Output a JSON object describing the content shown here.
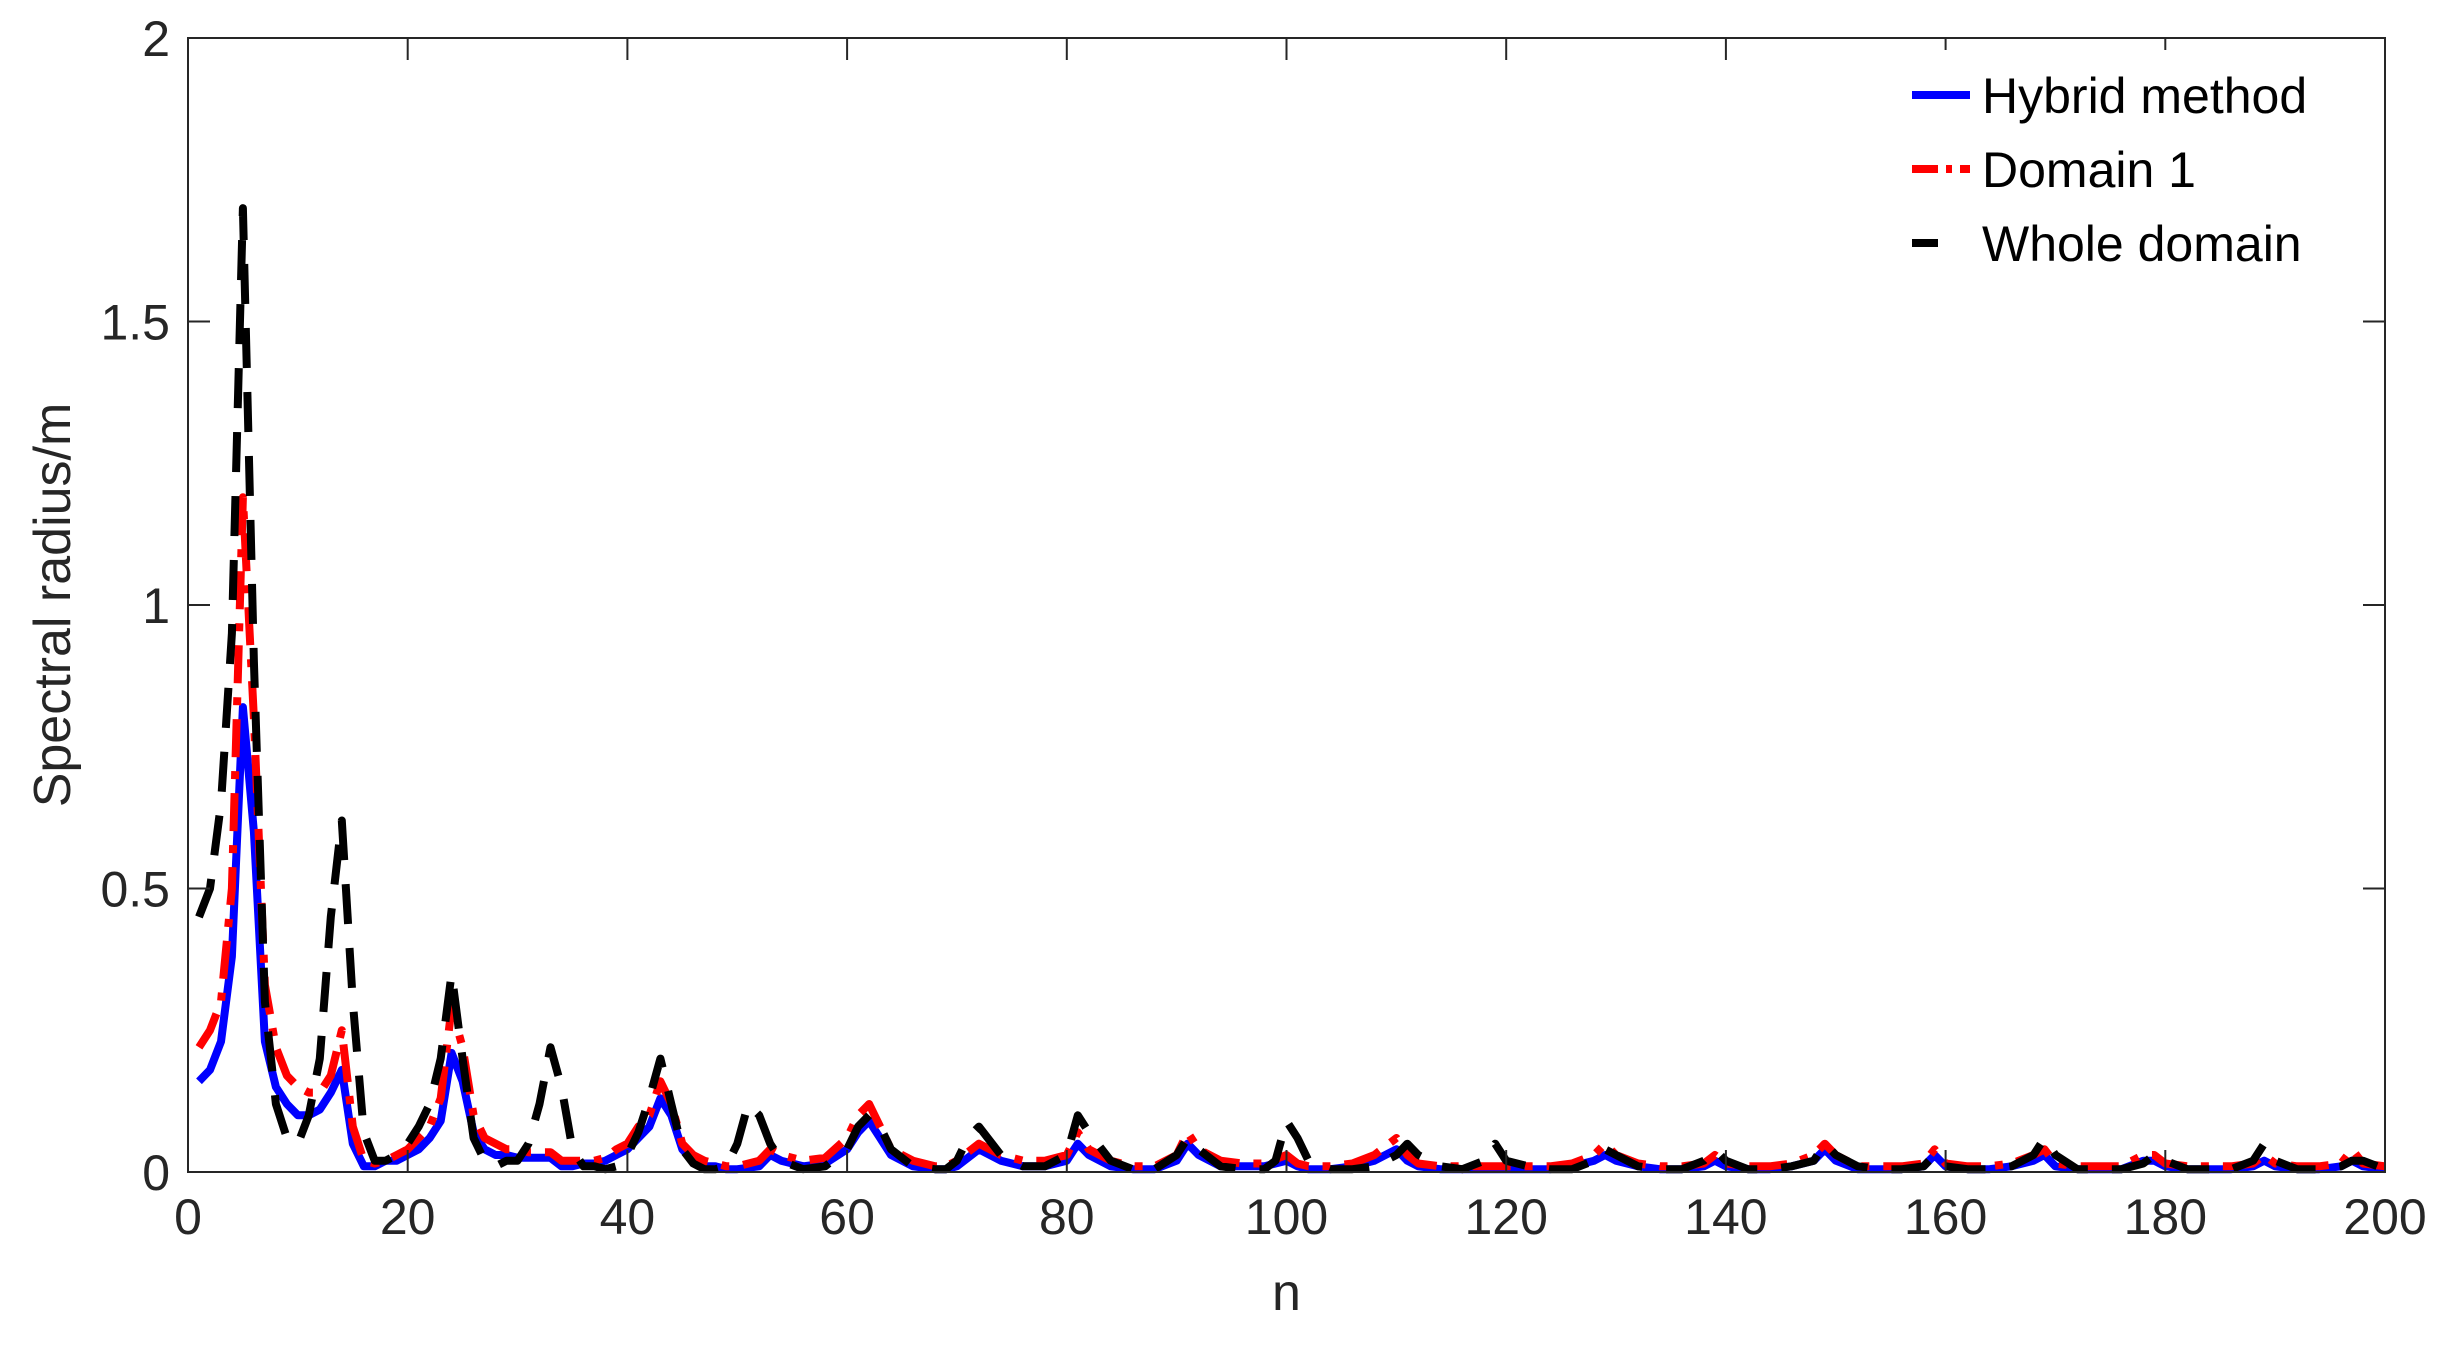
{
  "chart_data": {
    "type": "line",
    "xlabel": "n",
    "ylabel": "Spectral radius/m",
    "xlim": [
      0,
      200
    ],
    "ylim": [
      0,
      2
    ],
    "xticks": [
      0,
      20,
      40,
      60,
      80,
      100,
      120,
      140,
      160,
      180,
      200
    ],
    "yticks": [
      0,
      0.5,
      1,
      1.5,
      2
    ],
    "ytick_labels": [
      "0",
      "0.5",
      "1",
      "1.5",
      "2"
    ],
    "grid": false,
    "legend_position": "top-right",
    "series": [
      {
        "name": "Hybrid method",
        "color": "#0000ff",
        "style": "solid",
        "x": [
          1,
          2,
          3,
          4,
          5,
          6,
          7,
          8,
          9,
          10,
          11,
          12,
          13,
          14,
          15,
          16,
          17,
          18,
          19,
          20,
          21,
          22,
          23,
          24,
          25,
          26,
          27,
          28,
          29,
          30,
          31,
          32,
          33,
          34,
          35,
          36,
          37,
          38,
          39,
          40,
          41,
          42,
          43,
          44,
          45,
          46,
          47,
          48,
          49,
          50,
          52,
          53,
          54,
          56,
          58,
          60,
          61,
          62,
          63,
          64,
          66,
          68,
          69,
          70,
          72,
          74,
          76,
          78,
          80,
          81,
          82,
          84,
          86,
          88,
          90,
          91,
          92,
          94,
          96,
          98,
          100,
          101,
          102,
          104,
          106,
          108,
          110,
          111,
          112,
          114,
          116,
          118,
          120,
          122,
          124,
          126,
          128,
          129,
          130,
          132,
          134,
          136,
          138,
          139,
          140,
          142,
          144,
          146,
          148,
          149,
          150,
          152,
          154,
          156,
          158,
          159,
          160,
          162,
          164,
          166,
          168,
          169,
          170,
          172,
          174,
          176,
          178,
          179,
          180,
          182,
          184,
          186,
          188,
          189,
          190,
          192,
          194,
          196,
          197,
          198,
          200
        ],
        "y": [
          0.16,
          0.18,
          0.23,
          0.38,
          0.82,
          0.6,
          0.23,
          0.15,
          0.12,
          0.1,
          0.1,
          0.11,
          0.14,
          0.18,
          0.05,
          0.01,
          0.01,
          0.02,
          0.02,
          0.03,
          0.04,
          0.06,
          0.09,
          0.21,
          0.16,
          0.07,
          0.04,
          0.03,
          0.03,
          0.025,
          0.025,
          0.025,
          0.025,
          0.01,
          0.01,
          0.015,
          0.015,
          0.02,
          0.03,
          0.04,
          0.06,
          0.08,
          0.13,
          0.1,
          0.04,
          0.02,
          0.01,
          0.01,
          0.005,
          0.005,
          0.01,
          0.03,
          0.02,
          0.01,
          0.015,
          0.04,
          0.07,
          0.09,
          0.06,
          0.03,
          0.01,
          0.005,
          0.005,
          0.01,
          0.04,
          0.02,
          0.01,
          0.01,
          0.02,
          0.05,
          0.03,
          0.01,
          0.005,
          0.005,
          0.02,
          0.05,
          0.03,
          0.01,
          0.01,
          0.01,
          0.02,
          0.01,
          0.005,
          0.005,
          0.01,
          0.02,
          0.04,
          0.02,
          0.01,
          0.005,
          0.005,
          0.005,
          0.005,
          0.005,
          0.005,
          0.01,
          0.02,
          0.03,
          0.02,
          0.01,
          0.005,
          0.005,
          0.01,
          0.02,
          0.01,
          0.005,
          0.005,
          0.01,
          0.02,
          0.04,
          0.02,
          0.005,
          0.005,
          0.005,
          0.01,
          0.03,
          0.01,
          0.005,
          0.005,
          0.01,
          0.02,
          0.03,
          0.01,
          0.005,
          0.005,
          0.005,
          0.02,
          0.02,
          0.01,
          0.005,
          0.005,
          0.005,
          0.01,
          0.02,
          0.01,
          0.005,
          0.005,
          0.01,
          0.02,
          0.01,
          0.005
        ]
      },
      {
        "name": "Domain 1",
        "color": "#ff0000",
        "style": "dashdot",
        "x": [
          1,
          2,
          3,
          4,
          5,
          6,
          7,
          8,
          9,
          10,
          11,
          12,
          13,
          14,
          15,
          16,
          17,
          18,
          19,
          20,
          21,
          22,
          23,
          24,
          25,
          26,
          27,
          28,
          29,
          30,
          31,
          32,
          33,
          34,
          35,
          36,
          37,
          38,
          39,
          40,
          41,
          42,
          43,
          44,
          45,
          46,
          47,
          48,
          49,
          50,
          52,
          53,
          54,
          56,
          58,
          60,
          61,
          62,
          63,
          64,
          66,
          68,
          69,
          70,
          72,
          74,
          76,
          78,
          80,
          81,
          82,
          84,
          86,
          88,
          90,
          91,
          92,
          94,
          96,
          98,
          100,
          101,
          102,
          104,
          106,
          108,
          110,
          111,
          112,
          114,
          116,
          118,
          120,
          122,
          124,
          126,
          128,
          129,
          130,
          132,
          134,
          136,
          138,
          139,
          140,
          142,
          144,
          146,
          148,
          149,
          150,
          152,
          154,
          156,
          158,
          159,
          160,
          162,
          164,
          166,
          168,
          169,
          170,
          172,
          174,
          176,
          178,
          179,
          180,
          182,
          184,
          186,
          188,
          189,
          190,
          192,
          194,
          196,
          197,
          198,
          200
        ],
        "y": [
          0.22,
          0.25,
          0.3,
          0.5,
          1.19,
          0.8,
          0.33,
          0.22,
          0.17,
          0.15,
          0.14,
          0.14,
          0.17,
          0.25,
          0.08,
          0.02,
          0.015,
          0.02,
          0.03,
          0.04,
          0.06,
          0.08,
          0.13,
          0.29,
          0.22,
          0.1,
          0.06,
          0.05,
          0.04,
          0.04,
          0.035,
          0.035,
          0.035,
          0.02,
          0.02,
          0.02,
          0.02,
          0.025,
          0.04,
          0.05,
          0.08,
          0.1,
          0.16,
          0.12,
          0.05,
          0.03,
          0.02,
          0.015,
          0.01,
          0.01,
          0.02,
          0.04,
          0.03,
          0.02,
          0.025,
          0.06,
          0.1,
          0.12,
          0.08,
          0.04,
          0.02,
          0.01,
          0.01,
          0.02,
          0.05,
          0.03,
          0.02,
          0.02,
          0.03,
          0.07,
          0.04,
          0.02,
          0.01,
          0.01,
          0.03,
          0.07,
          0.04,
          0.02,
          0.015,
          0.015,
          0.03,
          0.015,
          0.01,
          0.01,
          0.015,
          0.03,
          0.06,
          0.03,
          0.015,
          0.01,
          0.01,
          0.01,
          0.01,
          0.01,
          0.01,
          0.015,
          0.03,
          0.05,
          0.03,
          0.015,
          0.01,
          0.01,
          0.015,
          0.03,
          0.015,
          0.01,
          0.01,
          0.015,
          0.03,
          0.05,
          0.03,
          0.01,
          0.01,
          0.01,
          0.015,
          0.04,
          0.015,
          0.01,
          0.01,
          0.015,
          0.03,
          0.04,
          0.015,
          0.01,
          0.01,
          0.01,
          0.03,
          0.03,
          0.015,
          0.01,
          0.01,
          0.01,
          0.015,
          0.03,
          0.015,
          0.01,
          0.01,
          0.015,
          0.04,
          0.015,
          0.01
        ]
      },
      {
        "name": "Whole domain",
        "color": "#000000",
        "style": "dashed",
        "x": [
          1,
          2,
          3,
          4,
          5,
          6,
          7,
          8,
          9,
          10,
          11,
          12,
          13,
          14,
          15,
          16,
          17,
          18,
          19,
          20,
          21,
          22,
          23,
          24,
          25,
          26,
          27,
          28,
          29,
          30,
          31,
          32,
          33,
          34,
          35,
          36,
          37,
          38,
          39,
          40,
          41,
          42,
          43,
          44,
          45,
          46,
          47,
          48,
          49,
          50,
          51,
          52,
          53,
          54,
          56,
          58,
          60,
          61,
          62,
          63,
          64,
          66,
          68,
          69,
          70,
          71,
          72,
          74,
          76,
          78,
          80,
          81,
          82,
          84,
          86,
          88,
          90,
          91,
          92,
          94,
          96,
          98,
          99,
          100,
          101,
          102,
          104,
          106,
          108,
          110,
          111,
          112,
          114,
          116,
          118,
          119,
          120,
          122,
          124,
          126,
          128,
          129,
          130,
          132,
          134,
          136,
          138,
          139,
          140,
          142,
          144,
          146,
          148,
          149,
          150,
          152,
          154,
          156,
          158,
          159,
          160,
          162,
          164,
          166,
          168,
          169,
          170,
          172,
          174,
          176,
          178,
          179,
          180,
          182,
          184,
          186,
          188,
          189,
          190,
          192,
          194,
          196,
          197,
          198,
          200
        ],
        "y": [
          0.45,
          0.5,
          0.65,
          0.95,
          1.7,
          0.9,
          0.3,
          0.12,
          0.06,
          0.05,
          0.1,
          0.2,
          0.45,
          0.62,
          0.3,
          0.07,
          0.02,
          0.02,
          0.03,
          0.05,
          0.08,
          0.12,
          0.2,
          0.35,
          0.2,
          0.06,
          0.02,
          0.01,
          0.02,
          0.02,
          0.05,
          0.12,
          0.22,
          0.15,
          0.04,
          0.01,
          0.01,
          0.005,
          0.01,
          0.03,
          0.07,
          0.13,
          0.2,
          0.12,
          0.04,
          0.015,
          0.005,
          0.005,
          0.01,
          0.05,
          0.12,
          0.1,
          0.05,
          0.02,
          0.005,
          0.01,
          0.04,
          0.08,
          0.1,
          0.08,
          0.04,
          0.01,
          0.005,
          0.005,
          0.02,
          0.06,
          0.08,
          0.03,
          0.01,
          0.01,
          0.03,
          0.1,
          0.07,
          0.02,
          0.005,
          0.005,
          0.03,
          0.06,
          0.04,
          0.01,
          0.005,
          0.005,
          0.02,
          0.09,
          0.06,
          0.02,
          0.005,
          0.005,
          0.01,
          0.03,
          0.05,
          0.03,
          0.01,
          0.005,
          0.02,
          0.05,
          0.02,
          0.01,
          0.005,
          0.005,
          0.02,
          0.04,
          0.03,
          0.01,
          0.005,
          0.005,
          0.02,
          0.04,
          0.02,
          0.005,
          0.005,
          0.01,
          0.02,
          0.05,
          0.03,
          0.01,
          0.005,
          0.005,
          0.01,
          0.03,
          0.01,
          0.005,
          0.005,
          0.01,
          0.03,
          0.06,
          0.03,
          0.005,
          0.005,
          0.005,
          0.015,
          0.03,
          0.02,
          0.005,
          0.005,
          0.005,
          0.02,
          0.05,
          0.02,
          0.005,
          0.005,
          0.01,
          0.02,
          0.02,
          0.005
        ]
      }
    ]
  }
}
